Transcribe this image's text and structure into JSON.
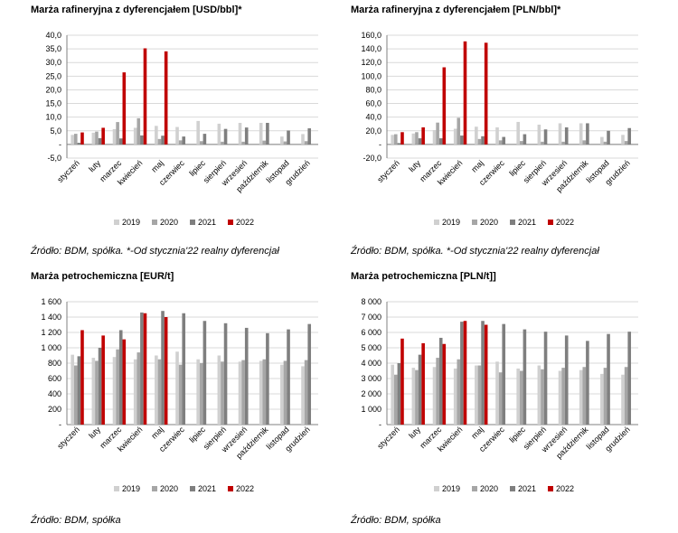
{
  "colors": {
    "2019": "#d0d0d0",
    "2020": "#a6a6a6",
    "2021": "#7f7f7f",
    "2022": "#c00000"
  },
  "series_names": [
    "2019",
    "2020",
    "2021",
    "2022"
  ],
  "months": [
    "styczeń",
    "luty",
    "marzec",
    "kwiecień",
    "maj",
    "czerwiec",
    "lipiec",
    "sierpień",
    "wrzesień",
    "październik",
    "listopad",
    "grudzień"
  ],
  "panels": [
    {
      "title": "Marża rafineryjna z dyferencjałem [USD/bbl]*",
      "source": "Źródło: BDM, spółka. *-Od stycznia'22 realny dyferencjał"
    },
    {
      "title": "Marża rafineryjna z dyferencjałem [PLN/bbl]*",
      "source": "Źródło: BDM, spółka. *-Od stycznia'22 realny dyferencjał"
    },
    {
      "title": "Marża petrochemiczna [EUR/t]",
      "source": "Źródło: BDM, spółka"
    },
    {
      "title": "Marża petrochemiczna [PLN/t]]",
      "source": "Źródło: BDM, spółka"
    }
  ],
  "chart_data": [
    {
      "type": "bar",
      "title": "Marża rafineryjna z dyferencjałem [USD/bbl]*",
      "categories": [
        "styczeń",
        "luty",
        "marzec",
        "kwiecień",
        "maj",
        "czerwiec",
        "lipiec",
        "sierpień",
        "wrzesień",
        "październik",
        "listopad",
        "grudzień"
      ],
      "ylim": [
        -5,
        40
      ],
      "yticks": [
        -5,
        0,
        5,
        10,
        15,
        20,
        25,
        30,
        35,
        40
      ],
      "ytick_labels": [
        "-5,0",
        "-",
        "5,0",
        "10,0",
        "15,0",
        "20,0",
        "25,0",
        "30,0",
        "35,0",
        "40,0"
      ],
      "grid": true,
      "legend": "bottom",
      "series": [
        {
          "name": "2019",
          "values": [
            3.5,
            4.3,
            5.6,
            6.1,
            6.8,
            6.4,
            8.6,
            7.6,
            7.9,
            7.9,
            2.9,
            3.8
          ]
        },
        {
          "name": "2020",
          "values": [
            3.9,
            4.7,
            8.2,
            9.6,
            2.0,
            1.5,
            1.2,
            1.0,
            1.0,
            1.4,
            1.1,
            1.2
          ]
        },
        {
          "name": "2021",
          "values": [
            0.6,
            2.3,
            2.2,
            3.3,
            3.2,
            2.9,
            3.9,
            5.7,
            6.2,
            7.9,
            5.1,
            5.9
          ]
        },
        {
          "name": "2022",
          "values": [
            4.4,
            6.1,
            26.4,
            35.2,
            34.1,
            null,
            null,
            null,
            null,
            null,
            null,
            null
          ]
        }
      ]
    },
    {
      "type": "bar",
      "title": "Marża rafineryjna z dyferencjałem [PLN/bbl]*",
      "categories": [
        "styczeń",
        "luty",
        "marzec",
        "kwiecień",
        "maj",
        "czerwiec",
        "lipiec",
        "sierpień",
        "wrzesień",
        "październik",
        "listopad",
        "grudzień"
      ],
      "ylim": [
        -20,
        160
      ],
      "yticks": [
        -20,
        0,
        20,
        40,
        60,
        80,
        100,
        120,
        140,
        160
      ],
      "ytick_labels": [
        "-20,0",
        "-",
        "20,0",
        "40,0",
        "60,0",
        "80,0",
        "100,0",
        "120,0",
        "140,0",
        "160,0"
      ],
      "grid": true,
      "legend": "bottom",
      "series": [
        {
          "name": "2019",
          "values": [
            14,
            16,
            21,
            23,
            26,
            25,
            33,
            29,
            31,
            31,
            11,
            14
          ]
        },
        {
          "name": "2020",
          "values": [
            15,
            18,
            32,
            39,
            8,
            6,
            5,
            4,
            4,
            6,
            4,
            5
          ]
        },
        {
          "name": "2021",
          "values": [
            2,
            9,
            9,
            13,
            12,
            11,
            15,
            22,
            25,
            31,
            20,
            24
          ]
        },
        {
          "name": "2022",
          "values": [
            18,
            25,
            113,
            151,
            149,
            null,
            null,
            null,
            null,
            null,
            null,
            null
          ]
        }
      ]
    },
    {
      "type": "bar",
      "title": "Marża petrochemiczna [EUR/t]",
      "categories": [
        "styczeń",
        "luty",
        "marzec",
        "kwiecień",
        "maj",
        "czerwiec",
        "lipiec",
        "sierpień",
        "wrzesień",
        "październik",
        "listopad",
        "grudzień"
      ],
      "ylim": [
        0,
        1600
      ],
      "yticks": [
        0,
        200,
        400,
        600,
        800,
        1000,
        1200,
        1400,
        1600
      ],
      "ytick_labels": [
        "-",
        "200",
        "400",
        "600",
        "800",
        "1 000",
        "1 200",
        "1 400",
        "1 600"
      ],
      "grid": true,
      "legend": "bottom",
      "series": [
        {
          "name": "2019",
          "values": [
            910,
            870,
            880,
            850,
            900,
            950,
            850,
            900,
            820,
            830,
            780,
            760
          ]
        },
        {
          "name": "2020",
          "values": [
            770,
            830,
            980,
            940,
            850,
            780,
            800,
            820,
            840,
            850,
            830,
            840
          ]
        },
        {
          "name": "2021",
          "values": [
            890,
            1000,
            1230,
            1460,
            1480,
            1450,
            1350,
            1320,
            1260,
            1190,
            1240,
            1310
          ]
        },
        {
          "name": "2022",
          "values": [
            1230,
            1160,
            1110,
            1450,
            1400,
            null,
            null,
            null,
            null,
            null,
            null,
            null
          ]
        }
      ]
    },
    {
      "type": "bar",
      "title": "Marża petrochemiczna [PLN/t]]",
      "categories": [
        "styczeń",
        "luty",
        "marzec",
        "kwiecień",
        "maj",
        "czerwiec",
        "lipiec",
        "sierpień",
        "wrzesień",
        "październik",
        "listopad",
        "grudzień"
      ],
      "ylim": [
        0,
        8000
      ],
      "yticks": [
        0,
        1000,
        2000,
        3000,
        4000,
        5000,
        6000,
        7000,
        8000
      ],
      "ytick_labels": [
        "-",
        "1 000",
        "2 000",
        "3 000",
        "4 000",
        "5 000",
        "6 000",
        "7 000",
        "8 000"
      ],
      "grid": true,
      "legend": "bottom",
      "series": [
        {
          "name": "2019",
          "values": [
            3900,
            3700,
            3750,
            3650,
            3850,
            4100,
            3650,
            3850,
            3500,
            3550,
            3300,
            3250
          ]
        },
        {
          "name": "2020",
          "values": [
            3250,
            3550,
            4350,
            4250,
            3850,
            3400,
            3500,
            3600,
            3700,
            3750,
            3700,
            3750
          ]
        },
        {
          "name": "2021",
          "values": [
            4000,
            4550,
            5650,
            6700,
            6750,
            6550,
            6200,
            6050,
            5800,
            5450,
            5900,
            6050
          ]
        },
        {
          "name": "2022",
          "values": [
            5600,
            5300,
            5250,
            6750,
            6500,
            null,
            null,
            null,
            null,
            null,
            null,
            null
          ]
        }
      ]
    }
  ]
}
